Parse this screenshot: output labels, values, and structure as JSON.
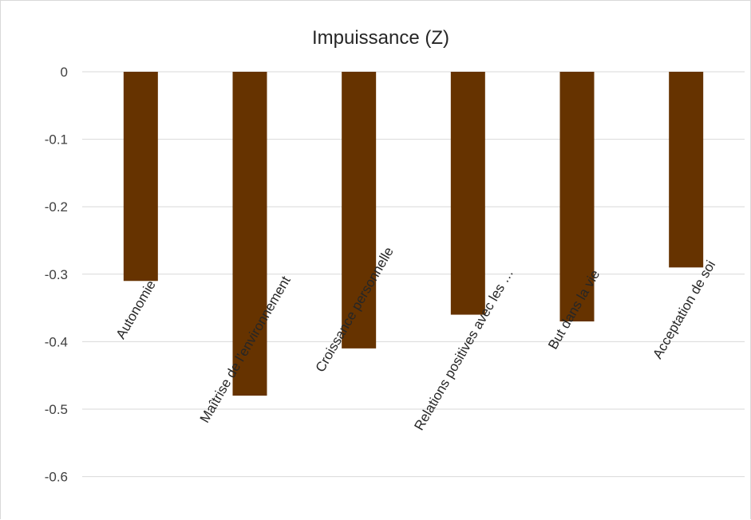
{
  "chart_data": {
    "type": "bar",
    "title": "Impuissance (Z)",
    "categories": [
      "Autonomie",
      "Maîtrise de l’environnement",
      "Croissance personnelle",
      "Relations positives avec les …",
      "But dans la vie",
      "Acceptation de soi"
    ],
    "values": [
      -0.31,
      -0.48,
      -0.41,
      -0.36,
      -0.37,
      -0.29
    ],
    "ylim": [
      -0.6,
      0
    ],
    "yticks": [
      "0",
      "-0.1",
      "-0.2",
      "-0.3",
      "-0.4",
      "-0.5",
      "-0.6"
    ],
    "xlabel": "",
    "ylabel": "",
    "grid": true,
    "legend": "none",
    "bar_color": "#663300"
  }
}
